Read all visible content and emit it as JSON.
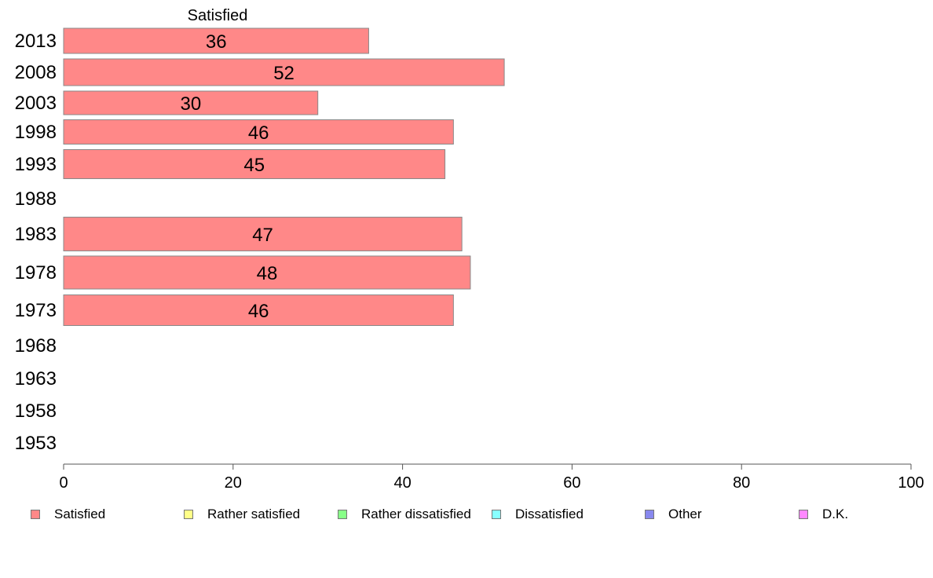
{
  "chart_data": {
    "type": "bar",
    "orientation": "horizontal",
    "title": "Satisfied",
    "categories": [
      "2013",
      "2008",
      "2003",
      "1998",
      "1993",
      "1988",
      "1983",
      "1978",
      "1973",
      "1968",
      "1963",
      "1958",
      "1953"
    ],
    "series": [
      {
        "name": "Satisfied",
        "color": "#ff8888",
        "values": [
          36,
          52,
          30,
          46,
          45,
          null,
          47,
          48,
          46,
          null,
          null,
          null,
          null
        ]
      }
    ],
    "data_labels": [
      "36",
      "52",
      "30",
      "46",
      "45",
      "",
      "47",
      "48",
      "46",
      "",
      "",
      "",
      ""
    ],
    "xlim": [
      0,
      100
    ],
    "xticks": [
      0,
      20,
      40,
      60,
      80,
      100
    ],
    "xlabel": "",
    "ylabel": "",
    "grid": false,
    "legend": {
      "position": "bottom",
      "items": [
        {
          "label": "Satisfied",
          "color": "#ff8888"
        },
        {
          "label": "Rather satisfied",
          "color": "#ffff88"
        },
        {
          "label": "Rather dissatisfied",
          "color": "#88ff88"
        },
        {
          "label": "Dissatisfied",
          "color": "#88ffff"
        },
        {
          "label": "Other",
          "color": "#8888ee"
        },
        {
          "label": "D.K.",
          "color": "#ff88ff"
        }
      ]
    }
  }
}
